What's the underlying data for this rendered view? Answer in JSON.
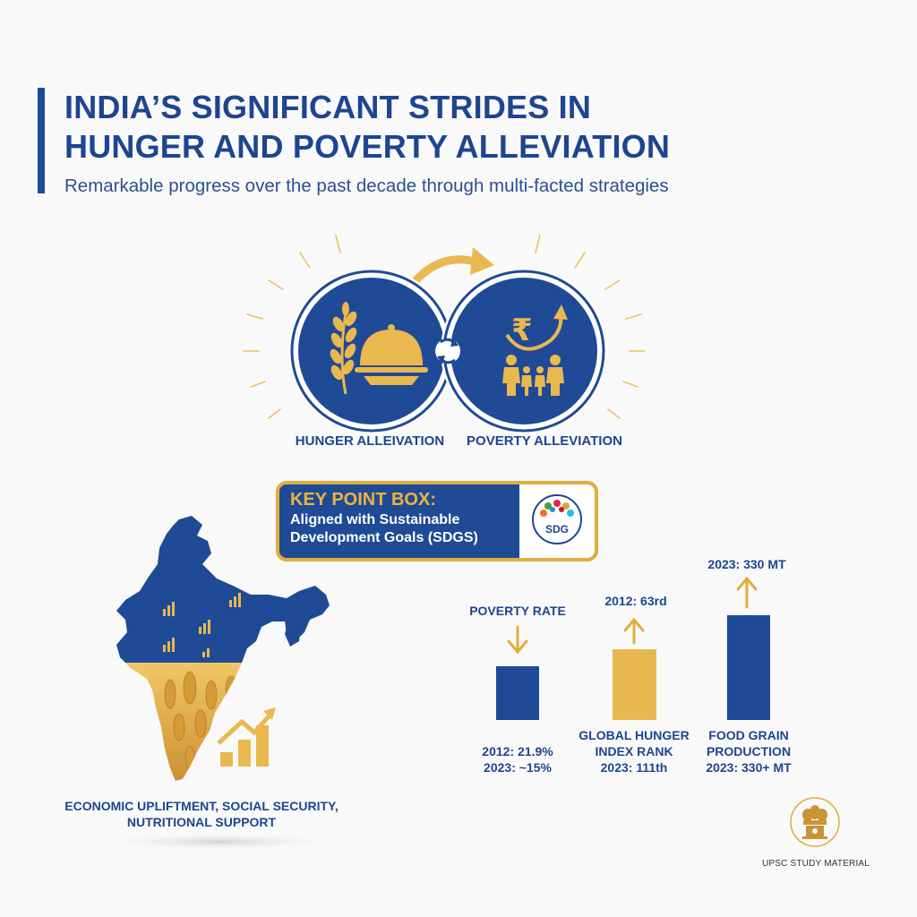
{
  "header": {
    "title_line1": "INDIA’S SIGNIFICANT STRIDES IN",
    "title_line2": "HUNGER AND POVERTY ALLEVIATION",
    "subtitle": "Remarkable progress over the past decade through multi-facted strategies"
  },
  "circles": {
    "hunger_label": "HUNGER ALLEIVATION",
    "poverty_label": "POVERTY ALLEVIATION",
    "hunger_icons": [
      "wheat-icon",
      "food-dome-icon"
    ],
    "poverty_icons": [
      "rupee-icon",
      "up-arrow-icon",
      "family-icon"
    ]
  },
  "key_box": {
    "heading": "KEY POINT BOX:",
    "line1": "Aligned with Sustainable",
    "line2": "Development Goals (SDGS)",
    "badge": "SDG"
  },
  "map": {
    "caption_line1": "ECONOMIC UPLIFTMENT, SOCIAL SECURITY,",
    "caption_line2": "NUTRITIONAL SUPPORT",
    "icons": [
      "india-map-icon",
      "wheat-field-icon",
      "growth-chart-icon"
    ]
  },
  "stats": [
    {
      "top_label": "POVERTY RATE",
      "bottom_line1": "2012: 21.9%",
      "bottom_line2": "2023: ~15%",
      "arrow": "down",
      "color": "#1f4a96"
    },
    {
      "top_label": "2012: 63rd",
      "bottom_line1": "GLOBAL HUNGER",
      "bottom_line2": "INDEX RANK",
      "bottom_line3": "2023: 111th",
      "arrow": "up",
      "color": "#e8b850"
    },
    {
      "top_label": "2023: 330 MT",
      "bottom_line1": "FOOD GRAIN",
      "bottom_line2": "PRODUCTION",
      "bottom_line3": "2023: 330+ MT",
      "arrow": "up",
      "color": "#1f4a96"
    }
  ],
  "footer": {
    "label": "UPSC STUDY MATERIAL",
    "icons": [
      "national-emblem-icon"
    ]
  },
  "colors": {
    "navy": "#1f4a96",
    "gold": "#e1ad3e",
    "light_gold": "#e8b850",
    "background": "#f9f9fa"
  }
}
